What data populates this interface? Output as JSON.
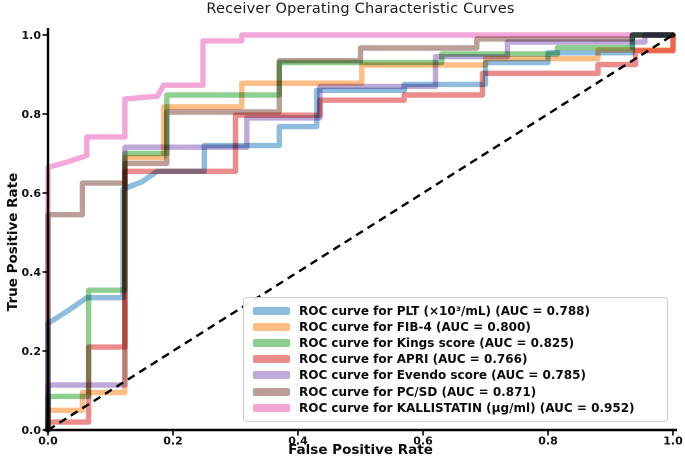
{
  "title": "Receiver Operating Characteristic Curves",
  "chart_data": {
    "type": "line",
    "subtype": "roc-step-curves",
    "title": "Receiver Operating Characteristic Curves",
    "xlabel": "False Positive Rate",
    "ylabel": "True Positive Rate",
    "xlim": [
      0.0,
      1.0
    ],
    "ylim": [
      0.0,
      1.0
    ],
    "xticks": [
      0.0,
      0.2,
      0.4,
      0.6,
      0.8,
      1.0
    ],
    "yticks": [
      0.0,
      0.2,
      0.4,
      0.6,
      0.8,
      1.0
    ],
    "grid": false,
    "legend_position": "lower right",
    "axis_color": "#000000",
    "tick_label_color": "#111111",
    "reference_line": {
      "name": "chance-diagonal",
      "style": "dashed",
      "color": "#000000",
      "points": [
        [
          0,
          0
        ],
        [
          1,
          1
        ]
      ]
    },
    "series": [
      {
        "id": "plt",
        "label": "ROC curve for PLT (×10³/mL) (AUC = 0.788)",
        "auc": 0.788,
        "color": "#8ebcdc",
        "points": [
          [
            0,
            0
          ],
          [
            0,
            0.27
          ],
          [
            0.03,
            0.3
          ],
          [
            0.062,
            0.335
          ],
          [
            0.12,
            0.335
          ],
          [
            0.12,
            0.61
          ],
          [
            0.15,
            0.628
          ],
          [
            0.175,
            0.655
          ],
          [
            0.25,
            0.655
          ],
          [
            0.25,
            0.72
          ],
          [
            0.37,
            0.72
          ],
          [
            0.37,
            0.768
          ],
          [
            0.43,
            0.768
          ],
          [
            0.43,
            0.86
          ],
          [
            0.57,
            0.86
          ],
          [
            0.57,
            0.875
          ],
          [
            0.7,
            0.875
          ],
          [
            0.7,
            0.93
          ],
          [
            0.8,
            0.93
          ],
          [
            0.8,
            0.955
          ],
          [
            0.935,
            0.955
          ],
          [
            0.935,
            1
          ],
          [
            1,
            1
          ]
        ]
      },
      {
        "id": "fib4",
        "label": "ROC curve for FIB-4 (AUC = 0.800)",
        "auc": 0.8,
        "color": "#fdbd84",
        "points": [
          [
            0,
            0
          ],
          [
            0,
            0.05
          ],
          [
            0.055,
            0.05
          ],
          [
            0.055,
            0.095
          ],
          [
            0.123,
            0.095
          ],
          [
            0.123,
            0.69
          ],
          [
            0.185,
            0.69
          ],
          [
            0.185,
            0.818
          ],
          [
            0.31,
            0.818
          ],
          [
            0.31,
            0.878
          ],
          [
            0.502,
            0.878
          ],
          [
            0.502,
            0.924
          ],
          [
            0.7,
            0.924
          ],
          [
            0.7,
            0.94
          ],
          [
            0.88,
            0.94
          ],
          [
            0.88,
            0.962
          ],
          [
            1,
            0.962
          ],
          [
            1,
            1
          ]
        ]
      },
      {
        "id": "kings",
        "label": "ROC curve for Kings score (AUC = 0.825)",
        "auc": 0.825,
        "color": "#8ecf90",
        "points": [
          [
            0,
            0
          ],
          [
            0,
            0.085
          ],
          [
            0.065,
            0.085
          ],
          [
            0.065,
            0.354
          ],
          [
            0.123,
            0.354
          ],
          [
            0.123,
            0.7
          ],
          [
            0.19,
            0.7
          ],
          [
            0.19,
            0.848
          ],
          [
            0.37,
            0.848
          ],
          [
            0.37,
            0.93
          ],
          [
            0.63,
            0.93
          ],
          [
            0.63,
            0.952
          ],
          [
            0.815,
            0.952
          ],
          [
            0.815,
            0.968
          ],
          [
            0.935,
            0.968
          ],
          [
            0.935,
            1
          ],
          [
            1,
            1
          ]
        ]
      },
      {
        "id": "apri",
        "label": "ROC curve for APRI (AUC = 0.766)",
        "auc": 0.766,
        "color": "#ec8c8a",
        "points": [
          [
            0,
            0
          ],
          [
            0,
            0.02
          ],
          [
            0.065,
            0.02
          ],
          [
            0.065,
            0.21
          ],
          [
            0.123,
            0.21
          ],
          [
            0.123,
            0.655
          ],
          [
            0.3,
            0.655
          ],
          [
            0.3,
            0.797
          ],
          [
            0.435,
            0.797
          ],
          [
            0.435,
            0.835
          ],
          [
            0.57,
            0.835
          ],
          [
            0.57,
            0.848
          ],
          [
            0.695,
            0.848
          ],
          [
            0.695,
            0.903
          ],
          [
            0.88,
            0.903
          ],
          [
            0.88,
            0.925
          ],
          [
            0.94,
            0.925
          ],
          [
            0.94,
            0.96
          ],
          [
            1,
            0.96
          ],
          [
            1,
            1
          ]
        ]
      },
      {
        "id": "evendo",
        "label": "ROC curve for Evendo score (AUC = 0.785)",
        "auc": 0.785,
        "color": "#bea9d9",
        "points": [
          [
            0,
            0
          ],
          [
            0,
            0.114
          ],
          [
            0.123,
            0.114
          ],
          [
            0.123,
            0.716
          ],
          [
            0.318,
            0.716
          ],
          [
            0.318,
            0.79
          ],
          [
            0.435,
            0.79
          ],
          [
            0.435,
            0.87
          ],
          [
            0.62,
            0.87
          ],
          [
            0.62,
            0.945
          ],
          [
            0.735,
            0.945
          ],
          [
            0.735,
            0.982
          ],
          [
            0.955,
            0.982
          ],
          [
            0.955,
            1
          ],
          [
            1,
            1
          ]
        ]
      },
      {
        "id": "pcsd",
        "label": "ROC curve for PC/SD (AUC = 0.871)",
        "auc": 0.871,
        "color": "#bb9f96",
        "points": [
          [
            0,
            0
          ],
          [
            0,
            0.545
          ],
          [
            0.055,
            0.545
          ],
          [
            0.055,
            0.625
          ],
          [
            0.123,
            0.625
          ],
          [
            0.123,
            0.675
          ],
          [
            0.19,
            0.675
          ],
          [
            0.19,
            0.805
          ],
          [
            0.37,
            0.805
          ],
          [
            0.37,
            0.935
          ],
          [
            0.5,
            0.935
          ],
          [
            0.5,
            0.967
          ],
          [
            0.686,
            0.967
          ],
          [
            0.686,
            0.99
          ],
          [
            0.935,
            0.99
          ],
          [
            0.935,
            1
          ],
          [
            1,
            1
          ]
        ]
      },
      {
        "id": "kallistatin",
        "label": "ROC curve for KALLISTATIN (µg/ml) (AUC = 0.952)",
        "auc": 0.952,
        "color": "#f2a7d8",
        "points": [
          [
            0,
            0
          ],
          [
            0,
            0.665
          ],
          [
            0.03,
            0.678
          ],
          [
            0.062,
            0.695
          ],
          [
            0.062,
            0.742
          ],
          [
            0.123,
            0.742
          ],
          [
            0.123,
            0.838
          ],
          [
            0.175,
            0.845
          ],
          [
            0.185,
            0.873
          ],
          [
            0.248,
            0.873
          ],
          [
            0.248,
            0.985
          ],
          [
            0.31,
            0.985
          ],
          [
            0.31,
            1
          ],
          [
            1,
            1
          ]
        ]
      }
    ]
  }
}
